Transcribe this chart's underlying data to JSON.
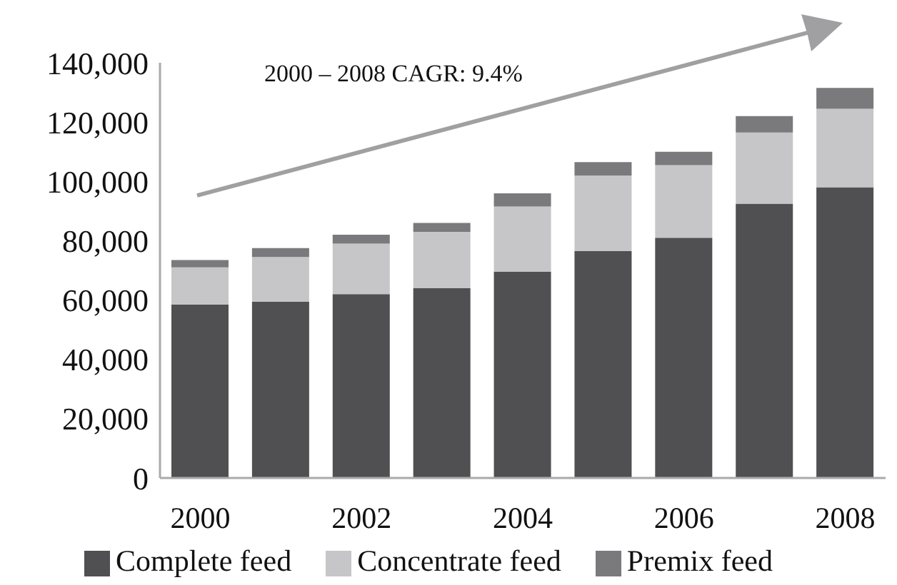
{
  "chart_data": {
    "type": "bar",
    "stacked": true,
    "categories": [
      "2000",
      null,
      "2002",
      null,
      "2004",
      null,
      "2006",
      null,
      "2008"
    ],
    "series": [
      {
        "name": "Complete feed",
        "color": "#505052",
        "values": [
          58500,
          59500,
          62000,
          64000,
          69500,
          76500,
          81000,
          92500,
          98000
        ]
      },
      {
        "name": "Concentrate feed",
        "color": "#c6c6c8",
        "values": [
          12500,
          15000,
          17000,
          19000,
          22000,
          25500,
          24500,
          24000,
          26500
        ]
      },
      {
        "name": "Premix feed",
        "color": "#7a7a7c",
        "values": [
          2500,
          3000,
          3000,
          3000,
          4500,
          4500,
          4500,
          5500,
          7000
        ]
      }
    ],
    "ylim": [
      0,
      140000
    ],
    "yticks": [
      0,
      {
        "value": 20000,
        "label": "20,000"
      },
      {
        "value": 40000,
        "label": "40,000"
      },
      {
        "value": 60000,
        "label": "60,000"
      },
      {
        "value": 80000,
        "label": "80,000"
      },
      {
        "value": 100000,
        "label": "100,000"
      },
      {
        "value": 120000,
        "label": "120,000"
      },
      {
        "value": 140000,
        "label": "140,000"
      }
    ],
    "grid": false,
    "legend": "bottom",
    "annotations": [
      "2000 – 2008 CAGR: 9.4%"
    ]
  }
}
